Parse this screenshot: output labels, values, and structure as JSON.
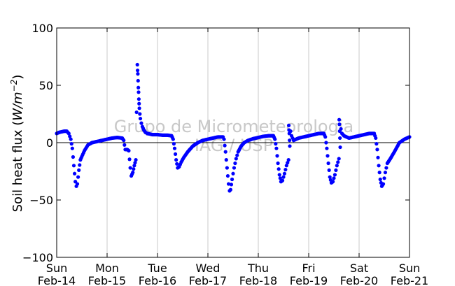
{
  "chart_data": {
    "type": "scatter",
    "ylabel": "Soil heat flux (W/m⁻²)",
    "ylabel_parts": {
      "text": "Soil heat flux (",
      "math": "W/m",
      "exp": "−2",
      "close": ")"
    },
    "ylim": [
      -100,
      100
    ],
    "xlim": [
      0,
      7
    ],
    "yticks": [
      {
        "value": 100,
        "label": "100"
      },
      {
        "value": 50,
        "label": "50"
      },
      {
        "value": 0,
        "label": "0"
      },
      {
        "value": -50,
        "label": "−50"
      },
      {
        "value": -100,
        "label": "−100"
      }
    ],
    "xticks": [
      {
        "value": 0,
        "day": "Sun",
        "date": "Feb-14"
      },
      {
        "value": 1,
        "day": "Mon",
        "date": "Feb-15"
      },
      {
        "value": 2,
        "day": "Tue",
        "date": "Feb-16"
      },
      {
        "value": 3,
        "day": "Wed",
        "date": "Feb-17"
      },
      {
        "value": 4,
        "day": "Thu",
        "date": "Feb-18"
      },
      {
        "value": 5,
        "day": "Fri",
        "date": "Feb-19"
      },
      {
        "value": 6,
        "day": "Sat",
        "date": "Feb-20"
      },
      {
        "value": 7,
        "day": "Sun",
        "date": "Feb-21"
      }
    ],
    "grid": "vertical",
    "zero_line": true,
    "series_color": "#0000ff",
    "watermark": [
      "Grupo de Micrometeorologia",
      "IAG / USP"
    ],
    "series": [
      {
        "values": [
          [
            0.0,
            8
          ],
          [
            0.05,
            9
          ],
          [
            0.1,
            9.5
          ],
          [
            0.15,
            10
          ],
          [
            0.2,
            10
          ],
          [
            0.24,
            8
          ],
          [
            0.28,
            3
          ],
          [
            0.31,
            -5
          ],
          [
            0.34,
            -20
          ],
          [
            0.37,
            -34
          ],
          [
            0.39,
            -38
          ],
          [
            0.41,
            -36
          ],
          [
            0.44,
            -24
          ],
          [
            0.47,
            -15
          ],
          [
            0.5,
            -12
          ],
          [
            0.55,
            -7
          ],
          [
            0.62,
            -2
          ],
          [
            0.7,
            0
          ],
          [
            0.8,
            1
          ],
          [
            0.9,
            2
          ],
          [
            1.0,
            3
          ],
          [
            1.1,
            4
          ],
          [
            1.2,
            4.5
          ],
          [
            1.3,
            4
          ],
          [
            1.33,
            2
          ],
          [
            1.36,
            -6
          ],
          [
            1.4,
            -6
          ],
          [
            1.43,
            -7
          ],
          [
            1.46,
            -22
          ],
          [
            1.48,
            -29
          ],
          [
            1.51,
            -26
          ],
          [
            1.54,
            -20
          ],
          [
            1.57,
            -15
          ],
          [
            1.6,
            68
          ],
          [
            1.605,
            63
          ],
          [
            1.61,
            60
          ],
          [
            1.615,
            54
          ],
          [
            1.62,
            48
          ],
          [
            1.625,
            44
          ],
          [
            1.63,
            38
          ],
          [
            1.635,
            34
          ],
          [
            1.64,
            30
          ],
          [
            1.65,
            25
          ],
          [
            1.66,
            21
          ],
          [
            1.68,
            17
          ],
          [
            1.7,
            14
          ],
          [
            1.73,
            11
          ],
          [
            1.76,
            9
          ],
          [
            1.8,
            8
          ],
          [
            1.9,
            7
          ],
          [
            2.0,
            7
          ],
          [
            2.1,
            6.5
          ],
          [
            2.2,
            6.5
          ],
          [
            2.28,
            6
          ],
          [
            2.31,
            3
          ],
          [
            2.34,
            -5
          ],
          [
            2.37,
            -15
          ],
          [
            2.4,
            -22
          ],
          [
            2.43,
            -21
          ],
          [
            2.47,
            -17
          ],
          [
            2.52,
            -13
          ],
          [
            2.6,
            -8
          ],
          [
            2.7,
            -3
          ],
          [
            2.8,
            0
          ],
          [
            2.9,
            2
          ],
          [
            3.0,
            3
          ],
          [
            3.1,
            4
          ],
          [
            3.2,
            5
          ],
          [
            3.3,
            5
          ],
          [
            3.32,
            3
          ],
          [
            3.35,
            -8
          ],
          [
            3.38,
            -22
          ],
          [
            3.41,
            -36
          ],
          [
            3.43,
            -42
          ],
          [
            3.45,
            -41
          ],
          [
            3.48,
            -32
          ],
          [
            3.52,
            -22
          ],
          [
            3.56,
            -14
          ],
          [
            3.6,
            -8
          ],
          [
            3.66,
            -3
          ],
          [
            3.72,
            0
          ],
          [
            3.8,
            2
          ],
          [
            3.9,
            3.5
          ],
          [
            4.0,
            4.5
          ],
          [
            4.1,
            5.5
          ],
          [
            4.2,
            6
          ],
          [
            4.3,
            6
          ],
          [
            4.33,
            3
          ],
          [
            4.36,
            -5
          ],
          [
            4.39,
            -18
          ],
          [
            4.42,
            -28
          ],
          [
            4.45,
            -34
          ],
          [
            4.48,
            -33
          ],
          [
            4.52,
            -27
          ],
          [
            4.56,
            -20
          ],
          [
            4.6,
            -15
          ],
          [
            4.605,
            15
          ],
          [
            4.61,
            11
          ],
          [
            4.615,
            8
          ],
          [
            4.62,
            2
          ],
          [
            4.625,
            -3
          ],
          [
            4.64,
            10
          ],
          [
            4.66,
            6
          ],
          [
            4.7,
            2
          ],
          [
            4.8,
            4
          ],
          [
            4.9,
            5
          ],
          [
            5.0,
            6
          ],
          [
            5.1,
            7
          ],
          [
            5.2,
            8
          ],
          [
            5.3,
            8
          ],
          [
            5.33,
            5
          ],
          [
            5.36,
            -5
          ],
          [
            5.39,
            -18
          ],
          [
            5.42,
            -30
          ],
          [
            5.45,
            -35
          ],
          [
            5.48,
            -34
          ],
          [
            5.52,
            -28
          ],
          [
            5.56,
            -20
          ],
          [
            5.6,
            -14
          ],
          [
            5.605,
            20
          ],
          [
            5.61,
            16
          ],
          [
            5.615,
            10
          ],
          [
            5.62,
            4
          ],
          [
            5.625,
            -4
          ],
          [
            5.64,
            12
          ],
          [
            5.66,
            8
          ],
          [
            5.7,
            6
          ],
          [
            5.8,
            4
          ],
          [
            5.9,
            5
          ],
          [
            6.0,
            6
          ],
          [
            6.1,
            7
          ],
          [
            6.2,
            8
          ],
          [
            6.3,
            8
          ],
          [
            6.33,
            4
          ],
          [
            6.36,
            -6
          ],
          [
            6.39,
            -20
          ],
          [
            6.42,
            -32
          ],
          [
            6.45,
            -38
          ],
          [
            6.48,
            -36
          ],
          [
            6.52,
            -26
          ],
          [
            6.56,
            -18
          ],
          [
            6.62,
            -14
          ],
          [
            6.7,
            -8
          ],
          [
            6.8,
            0
          ],
          [
            6.9,
            3
          ],
          [
            7.0,
            5
          ]
        ]
      }
    ]
  }
}
